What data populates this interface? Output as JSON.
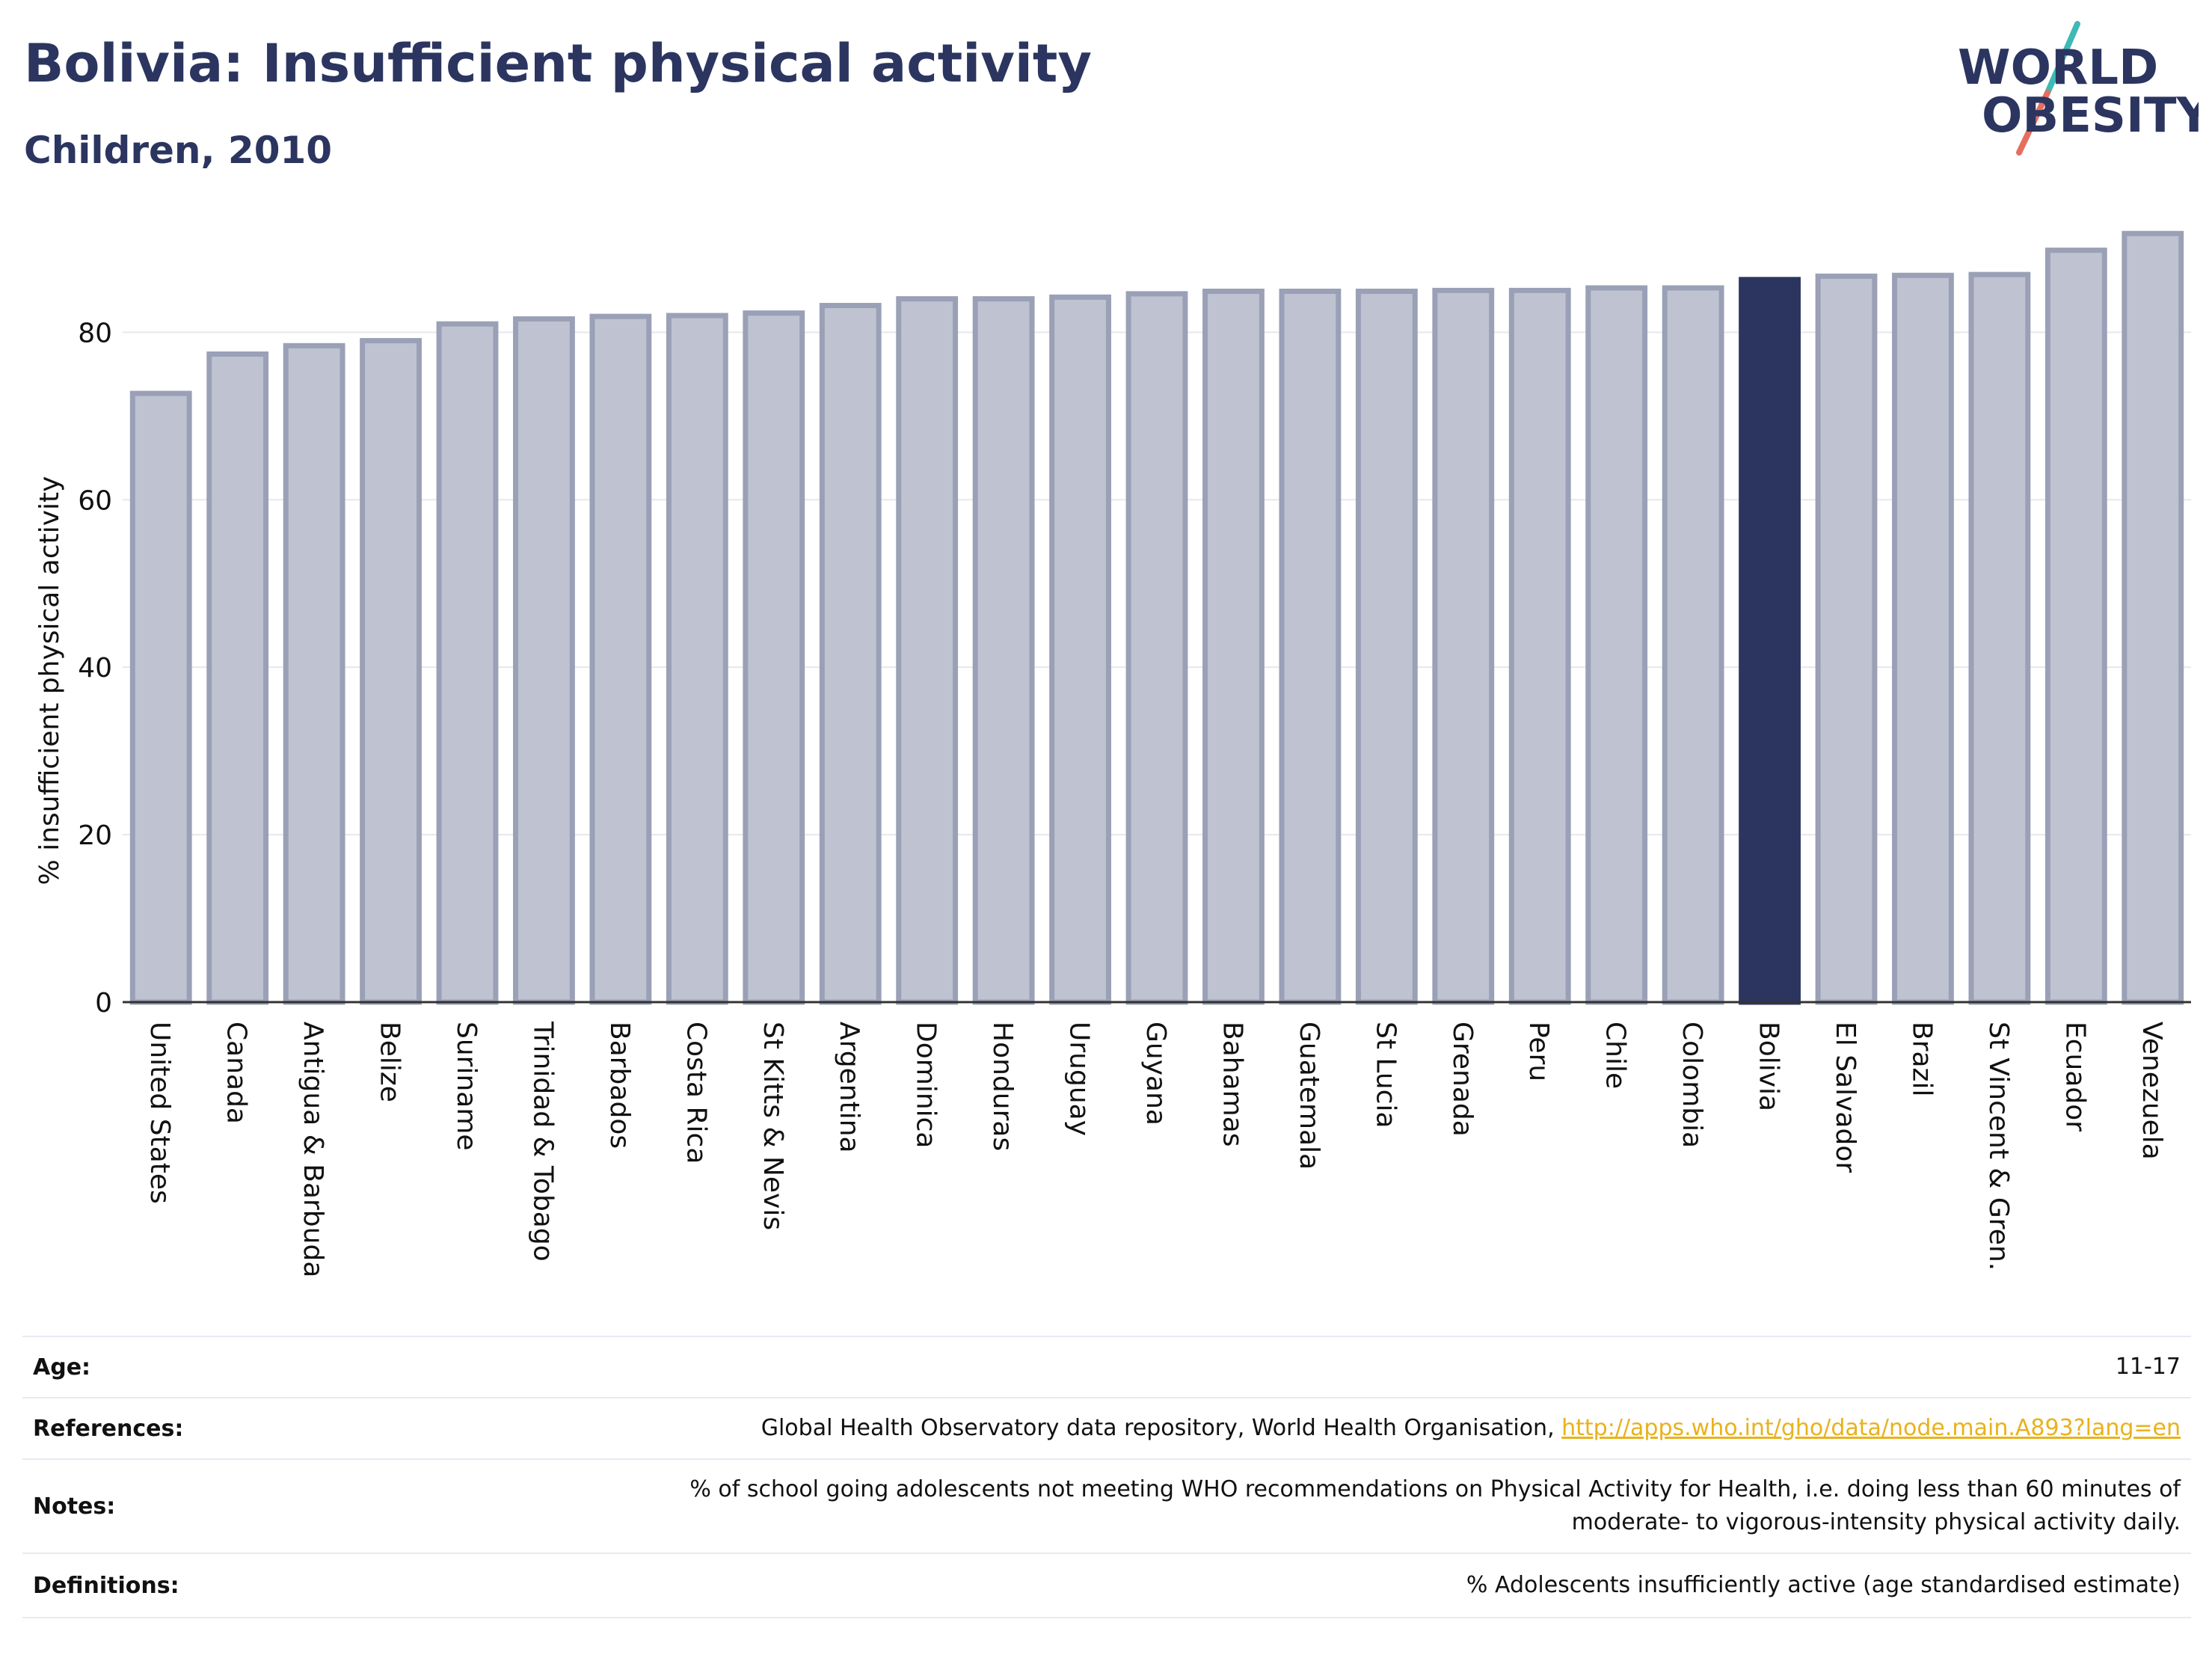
{
  "header": {
    "title": "Bolivia: Insufficient physical activity",
    "subtitle": "Children, 2010"
  },
  "logo": {
    "line1": "WORLD",
    "line2": "OBESITY",
    "colors": {
      "text": "#2b3560",
      "slash_teal": "#3fb9b5",
      "slash_coral": "#e56f5f"
    }
  },
  "chart_data": {
    "type": "bar",
    "ylabel": "% insufficient physical activity",
    "ylim": [
      0,
      92
    ],
    "yticks": [
      0,
      20,
      40,
      60,
      80
    ],
    "grid": true,
    "highlight": "Bolivia",
    "colors": {
      "bar": "#bfc3d1",
      "bar_edge": "#9aa0b6",
      "highlight": "#2b3560",
      "grid": "#e8e8ec",
      "axis": "#333333"
    },
    "categories": [
      "United States",
      "Canada",
      "Antigua & Barbuda",
      "Belize",
      "Suriname",
      "Trinidad & Tobago",
      "Barbados",
      "Costa Rica",
      "St Kitts & Nevis",
      "Argentina",
      "Dominica",
      "Honduras",
      "Uruguay",
      "Guyana",
      "Bahamas",
      "Guatemala",
      "St Lucia",
      "Grenada",
      "Peru",
      "Chile",
      "Colombia",
      "Bolivia",
      "El Salvador",
      "Brazil",
      "St Vincent & Gren.",
      "Ecuador",
      "Venezuela"
    ],
    "values": [
      72.7,
      77.4,
      78.4,
      79.0,
      81.0,
      81.6,
      81.9,
      82.0,
      82.3,
      83.2,
      84.0,
      84.0,
      84.2,
      84.6,
      84.9,
      84.9,
      84.9,
      85.0,
      85.0,
      85.3,
      85.3,
      86.3,
      86.7,
      86.8,
      86.9,
      89.8,
      91.8
    ]
  },
  "info": {
    "age": {
      "label": "Age:",
      "value": "11-17"
    },
    "references": {
      "label": "References:",
      "text": "Global Health Observatory data repository, World Health Organisation, ",
      "link": "http://apps.who.int/gho/data/node.main.A893?lang=en"
    },
    "notes": {
      "label": "Notes:",
      "line1": "% of school going adolescents not meeting WHO recommendations on Physical Activity for Health, i.e. doing less than 60 minutes of",
      "line2": "moderate- to vigorous-intensity physical activity daily."
    },
    "definitions": {
      "label": "Definitions:",
      "value": "% Adolescents insufficiently active (age standardised estimate)"
    }
  }
}
